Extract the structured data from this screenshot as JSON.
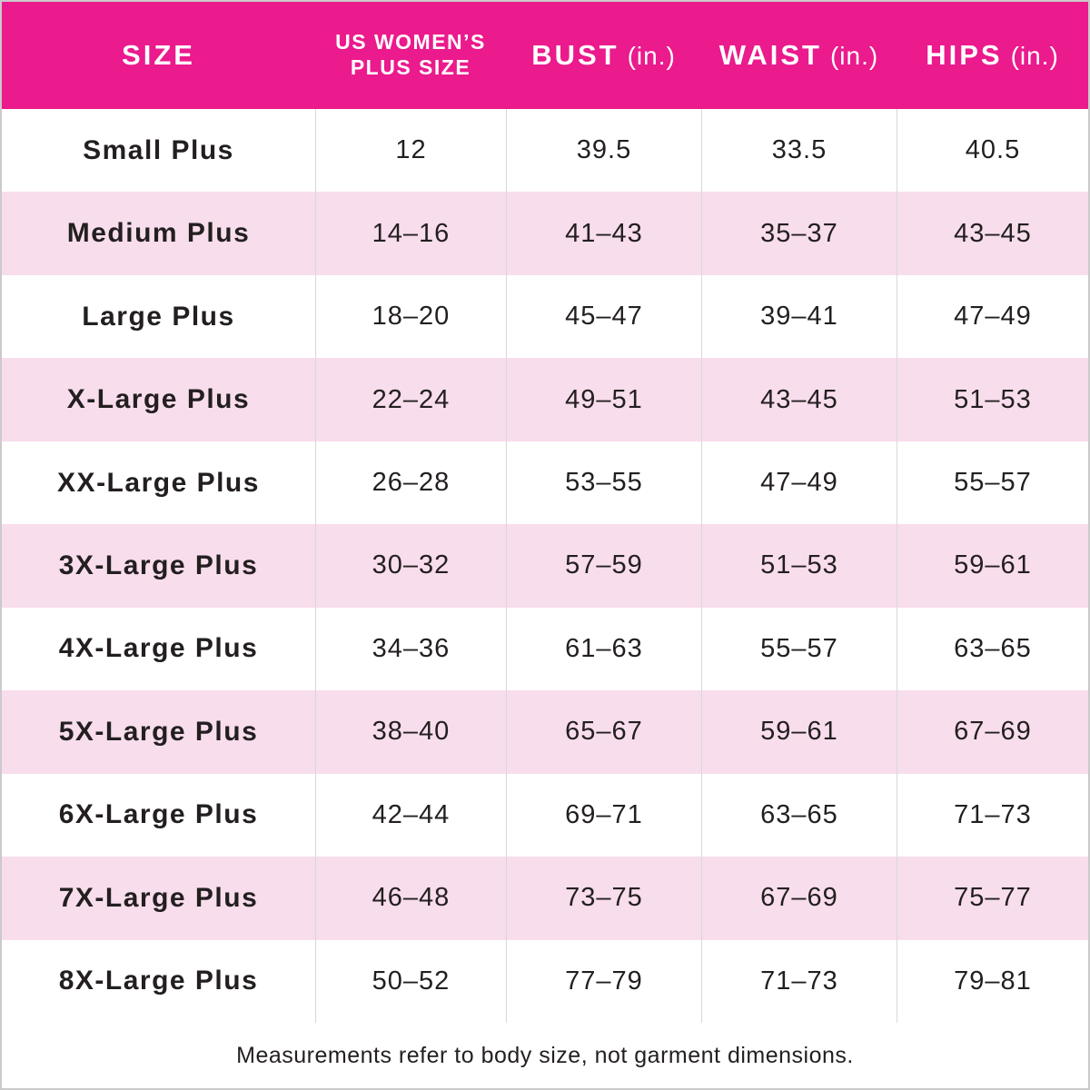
{
  "colors": {
    "header_bg": "#EB1A8D",
    "header_text": "#FFFFFF",
    "row_alt_bg": "#F8DDEC",
    "body_text": "#231F20",
    "divider": "#D8D8D8",
    "border": "#CACACA"
  },
  "columns": [
    {
      "title": "SIZE"
    },
    {
      "title_line1": "US WOMEN’S",
      "title_line2": "PLUS SIZE"
    },
    {
      "title": "BUST",
      "unit": "(in.)"
    },
    {
      "title": "WAIST",
      "unit": "(in.)"
    },
    {
      "title": "HIPS",
      "unit": "(in.)"
    }
  ],
  "rows": [
    {
      "size": "Small Plus",
      "us_plus_size": "12",
      "bust": "39.5",
      "waist": "33.5",
      "hips": "40.5"
    },
    {
      "size": "Medium Plus",
      "us_plus_size": "14–16",
      "bust": "41–43",
      "waist": "35–37",
      "hips": "43–45"
    },
    {
      "size": "Large Plus",
      "us_plus_size": "18–20",
      "bust": "45–47",
      "waist": "39–41",
      "hips": "47–49"
    },
    {
      "size": "X-Large Plus",
      "us_plus_size": "22–24",
      "bust": "49–51",
      "waist": "43–45",
      "hips": "51–53"
    },
    {
      "size": "XX-Large Plus",
      "us_plus_size": "26–28",
      "bust": "53–55",
      "waist": "47–49",
      "hips": "55–57"
    },
    {
      "size": "3X-Large Plus",
      "us_plus_size": "30–32",
      "bust": "57–59",
      "waist": "51–53",
      "hips": "59–61"
    },
    {
      "size": "4X-Large Plus",
      "us_plus_size": "34–36",
      "bust": "61–63",
      "waist": "55–57",
      "hips": "63–65"
    },
    {
      "size": "5X-Large Plus",
      "us_plus_size": "38–40",
      "bust": "65–67",
      "waist": "59–61",
      "hips": "67–69"
    },
    {
      "size": "6X-Large Plus",
      "us_plus_size": "42–44",
      "bust": "69–71",
      "waist": "63–65",
      "hips": "71–73"
    },
    {
      "size": "7X-Large Plus",
      "us_plus_size": "46–48",
      "bust": "73–75",
      "waist": "67–69",
      "hips": "75–77"
    },
    {
      "size": "8X-Large Plus",
      "us_plus_size": "50–52",
      "bust": "77–79",
      "waist": "71–73",
      "hips": "79–81"
    }
  ],
  "footer": {
    "note": "Measurements refer to body size, not garment dimensions."
  }
}
